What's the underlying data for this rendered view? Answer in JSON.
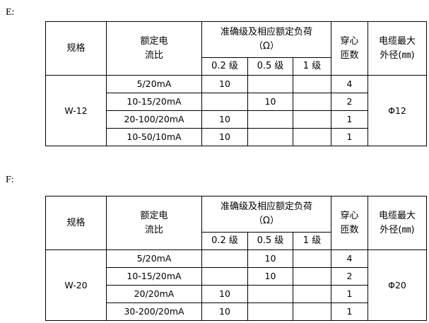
{
  "sections": [
    {
      "label": "E:",
      "headers": {
        "spec": "规格",
        "ratio_l1": "额定电",
        "ratio_l2": "流比",
        "accuracy_l1": "准确级及相应额定负荷",
        "accuracy_l2": "（Ω）",
        "class02": "0.2 级",
        "class05": "0.5 级",
        "class1": "1 级",
        "turns_l1": "穿心",
        "turns_l2": "匝数",
        "cable_l1": "电缆最大",
        "cable_l2": "外径(㎜)"
      },
      "model": "W-12",
      "cable_diameter": "Φ12",
      "rows": [
        {
          "ratio": "5/20mA",
          "c02": "10",
          "c05": "",
          "c1": "",
          "turns": "4"
        },
        {
          "ratio": "10-15/20mA",
          "c02": "",
          "c05": "10",
          "c1": "",
          "turns": "2"
        },
        {
          "ratio": "20-100/20mA",
          "c02": "10",
          "c05": "",
          "c1": "",
          "turns": "1"
        },
        {
          "ratio": "10-50/10mA",
          "c02": "10",
          "c05": "",
          "c1": "",
          "turns": "1"
        }
      ]
    },
    {
      "label": "F:",
      "headers": {
        "spec": "规格",
        "ratio_l1": "额定电",
        "ratio_l2": "流比",
        "accuracy_l1": "准确级及相应额定负荷",
        "accuracy_l2": "（Ω）",
        "class02": "0.2 级",
        "class05": "0.5 级",
        "class1": "1 级",
        "turns_l1": "穿心",
        "turns_l2": "匝数",
        "cable_l1": "电缆最大",
        "cable_l2": "外径(㎜)"
      },
      "model": "W-20",
      "cable_diameter": "Φ20",
      "rows": [
        {
          "ratio": "5/20mA",
          "c02": "",
          "c05": "10",
          "c1": "",
          "turns": "4"
        },
        {
          "ratio": "10-15/20mA",
          "c02": "",
          "c05": "10",
          "c1": "",
          "turns": "2"
        },
        {
          "ratio": "20/20mA",
          "c02": "10",
          "c05": "",
          "c1": "",
          "turns": "1"
        },
        {
          "ratio": "30-200/20mA",
          "c02": "10",
          "c05": "",
          "c1": "",
          "turns": "1"
        }
      ]
    }
  ]
}
